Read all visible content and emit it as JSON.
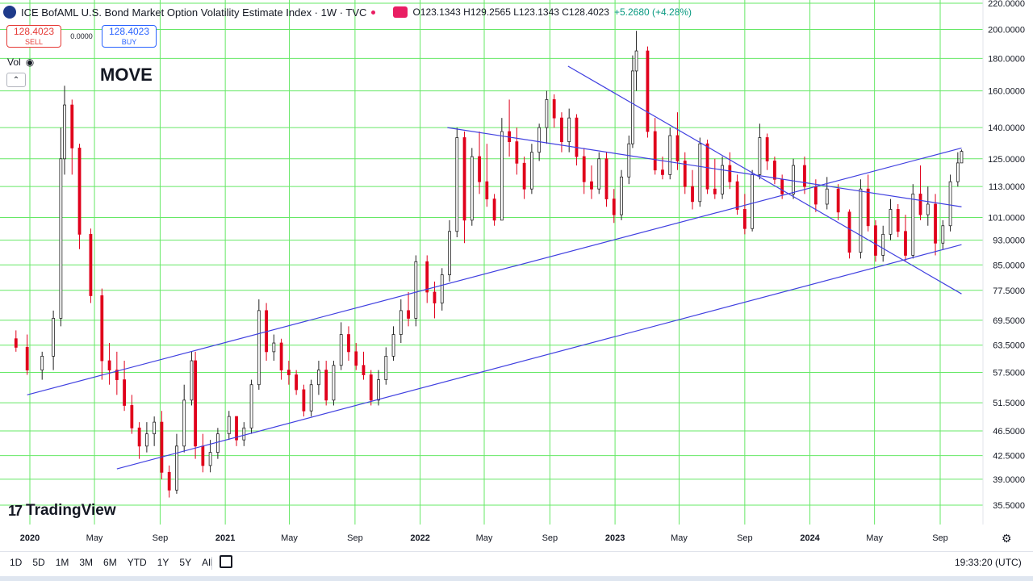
{
  "header": {
    "title": "ICE BofAML U.S. Bond Market Option Volatility Estimate Index · 1W · TVC",
    "ohlc": "O123.1343 H129.2565 L123.1343 C128.4023",
    "change": "+5.2680 (+4.28%)"
  },
  "trade": {
    "sell_price": "128.4023",
    "sell_label": "SELL",
    "spread": "0.0000",
    "buy_price": "128.4023",
    "buy_label": "BUY"
  },
  "volume_label": "Vol",
  "symbol_label": "MOVE",
  "brand": "TradingView",
  "time_ranges": [
    "1D",
    "5D",
    "1M",
    "3M",
    "6M",
    "YTD",
    "1Y",
    "5Y",
    "All"
  ],
  "clock": "19:33:20 (UTC)",
  "colors": {
    "up": "#787b86",
    "down": "#e0001b",
    "grid": "#66e866",
    "trendline": "#4040e0"
  },
  "chart_data": {
    "type": "candlestick",
    "scale": "log",
    "y_ticks": [
      "220.0000",
      "200.0000",
      "180.0000",
      "160.0000",
      "140.0000",
      "125.0000",
      "113.0000",
      "101.0000",
      "93.0000",
      "85.0000",
      "77.5000",
      "69.5000",
      "63.5000",
      "57.5000",
      "51.5000",
      "46.5000",
      "42.5000",
      "39.0000",
      "35.5000"
    ],
    "x_ticks": [
      "2020",
      "May",
      "Sep",
      "2021",
      "May",
      "Sep",
      "2022",
      "May",
      "Sep",
      "2023",
      "May",
      "Sep",
      "2024",
      "May",
      "Sep"
    ],
    "ylim": [
      33.5,
      225
    ],
    "grid": true,
    "ohlc_series": [
      [
        "2019-12-06",
        65,
        67,
        62,
        63
      ],
      [
        "2019-12-27",
        63,
        66,
        57,
        58
      ],
      [
        "2020-01-24",
        58,
        62,
        56,
        61
      ],
      [
        "2020-02-14",
        61,
        72,
        58,
        70
      ],
      [
        "2020-02-28",
        70,
        140,
        68,
        125
      ],
      [
        "2020-03-06",
        125,
        163,
        118,
        152
      ],
      [
        "2020-03-20",
        152,
        155,
        118,
        130
      ],
      [
        "2020-04-03",
        130,
        132,
        90,
        95
      ],
      [
        "2020-04-24",
        95,
        97,
        74,
        76
      ],
      [
        "2020-05-15",
        76,
        78,
        56,
        60
      ],
      [
        "2020-05-29",
        60,
        64,
        55,
        58
      ],
      [
        "2020-06-12",
        58,
        62,
        53,
        56
      ],
      [
        "2020-06-26",
        56,
        60,
        50,
        51
      ],
      [
        "2020-07-10",
        51,
        53,
        46,
        47
      ],
      [
        "2020-07-24",
        47,
        48,
        42,
        44
      ],
      [
        "2020-08-07",
        44,
        48,
        43,
        46
      ],
      [
        "2020-08-21",
        46,
        49,
        44,
        48
      ],
      [
        "2020-09-04",
        48,
        50,
        39,
        40
      ],
      [
        "2020-09-18",
        40,
        41,
        36.5,
        37.5
      ],
      [
        "2020-10-02",
        37.5,
        46,
        37,
        44
      ],
      [
        "2020-10-16",
        44,
        55,
        43,
        52
      ],
      [
        "2020-10-30",
        52,
        62,
        51,
        60
      ],
      [
        "2020-11-06",
        60,
        62,
        42,
        44
      ],
      [
        "2020-11-20",
        44,
        46,
        40,
        41
      ],
      [
        "2020-12-04",
        41,
        45,
        40,
        43
      ],
      [
        "2020-12-18",
        43,
        47,
        42,
        46
      ],
      [
        "2021-01-08",
        46,
        50,
        45,
        49
      ],
      [
        "2021-01-22",
        49,
        49,
        44,
        45
      ],
      [
        "2021-02-05",
        45,
        48,
        44,
        47
      ],
      [
        "2021-02-19",
        47,
        56,
        46,
        55
      ],
      [
        "2021-03-05",
        55,
        75,
        54,
        72
      ],
      [
        "2021-03-19",
        72,
        74,
        60,
        62
      ],
      [
        "2021-04-02",
        62,
        66,
        60,
        64
      ],
      [
        "2021-04-16",
        64,
        65,
        56,
        58
      ],
      [
        "2021-04-30",
        58,
        60,
        55,
        57
      ],
      [
        "2021-05-14",
        57,
        58,
        53,
        54
      ],
      [
        "2021-05-28",
        54,
        55,
        49,
        50
      ],
      [
        "2021-06-11",
        50,
        56,
        49,
        55
      ],
      [
        "2021-06-25",
        55,
        60,
        53,
        58
      ],
      [
        "2021-07-09",
        58,
        60,
        51,
        52
      ],
      [
        "2021-07-23",
        52,
        60,
        51,
        59
      ],
      [
        "2021-08-06",
        59,
        69,
        58,
        66
      ],
      [
        "2021-08-20",
        66,
        68,
        60,
        62
      ],
      [
        "2021-09-03",
        62,
        64,
        58,
        59
      ],
      [
        "2021-09-17",
        59,
        62,
        56,
        57
      ],
      [
        "2021-10-01",
        57,
        58,
        51,
        52
      ],
      [
        "2021-10-15",
        52,
        58,
        51,
        56
      ],
      [
        "2021-10-29",
        56,
        63,
        55,
        61
      ],
      [
        "2021-11-12",
        61,
        68,
        60,
        66
      ],
      [
        "2021-11-26",
        66,
        75,
        64,
        72
      ],
      [
        "2021-12-10",
        72,
        77,
        68,
        70
      ],
      [
        "2021-12-24",
        70,
        88,
        68,
        86
      ],
      [
        "2022-01-14",
        86,
        88,
        74,
        77
      ],
      [
        "2022-01-28",
        77,
        80,
        70,
        74
      ],
      [
        "2022-02-11",
        74,
        84,
        72,
        82
      ],
      [
        "2022-02-25",
        82,
        100,
        80,
        96
      ],
      [
        "2022-03-11",
        96,
        140,
        94,
        135
      ],
      [
        "2022-03-25",
        135,
        138,
        92,
        100
      ],
      [
        "2022-04-08",
        100,
        130,
        98,
        126
      ],
      [
        "2022-04-22",
        126,
        138,
        110,
        115
      ],
      [
        "2022-05-06",
        115,
        132,
        105,
        108
      ],
      [
        "2022-05-20",
        108,
        110,
        98,
        100
      ],
      [
        "2022-06-03",
        100,
        145,
        100,
        138
      ],
      [
        "2022-06-17",
        138,
        155,
        126,
        133
      ],
      [
        "2022-07-01",
        133,
        140,
        118,
        123
      ],
      [
        "2022-07-15",
        123,
        126,
        108,
        112
      ],
      [
        "2022-07-29",
        112,
        132,
        110,
        128
      ],
      [
        "2022-08-12",
        128,
        142,
        124,
        140
      ],
      [
        "2022-08-26",
        140,
        160,
        132,
        155
      ],
      [
        "2022-09-09",
        155,
        158,
        140,
        145
      ],
      [
        "2022-09-23",
        145,
        148,
        128,
        133
      ],
      [
        "2022-10-07",
        133,
        150,
        128,
        145
      ],
      [
        "2022-10-21",
        145,
        147,
        122,
        126
      ],
      [
        "2022-11-04",
        126,
        130,
        110,
        115
      ],
      [
        "2022-11-18",
        115,
        122,
        108,
        112
      ],
      [
        "2022-12-02",
        112,
        128,
        110,
        125
      ],
      [
        "2022-12-16",
        125,
        128,
        105,
        108
      ],
      [
        "2022-12-30",
        108,
        112,
        99,
        102
      ],
      [
        "2023-01-13",
        102,
        120,
        100,
        117
      ],
      [
        "2023-01-27",
        117,
        136,
        114,
        132
      ],
      [
        "2023-02-03",
        132,
        182,
        130,
        172
      ],
      [
        "2023-02-10",
        172,
        199,
        160,
        185
      ],
      [
        "2023-03-03",
        185,
        188,
        135,
        138
      ],
      [
        "2023-03-17",
        138,
        145,
        118,
        120
      ],
      [
        "2023-03-31",
        120,
        126,
        116,
        118
      ],
      [
        "2023-04-14",
        118,
        140,
        116,
        136
      ],
      [
        "2023-04-28",
        136,
        148,
        120,
        124
      ],
      [
        "2023-05-12",
        124,
        128,
        110,
        113
      ],
      [
        "2023-05-26",
        113,
        120,
        104,
        107
      ],
      [
        "2023-06-09",
        107,
        135,
        105,
        132
      ],
      [
        "2023-06-23",
        132,
        134,
        110,
        112
      ],
      [
        "2023-07-07",
        112,
        125,
        108,
        110
      ],
      [
        "2023-07-21",
        110,
        126,
        108,
        122
      ],
      [
        "2023-08-04",
        122,
        128,
        112,
        115
      ],
      [
        "2023-08-18",
        115,
        118,
        102,
        104
      ],
      [
        "2023-09-01",
        104,
        110,
        95,
        97
      ],
      [
        "2023-09-15",
        97,
        120,
        96,
        118
      ],
      [
        "2023-09-29",
        118,
        142,
        116,
        135
      ],
      [
        "2023-10-13",
        135,
        137,
        120,
        124
      ],
      [
        "2023-10-27",
        124,
        126,
        114,
        116
      ],
      [
        "2023-11-10",
        116,
        118,
        108,
        110
      ],
      [
        "2023-12-01",
        110,
        125,
        108,
        122
      ],
      [
        "2023-12-22",
        122,
        126,
        110,
        113
      ],
      [
        "2024-01-12",
        113,
        116,
        103,
        106
      ],
      [
        "2024-02-02",
        106,
        117,
        104,
        112
      ],
      [
        "2024-02-23",
        112,
        114,
        100,
        103
      ],
      [
        "2024-03-15",
        103,
        104,
        87,
        89
      ],
      [
        "2024-04-05",
        89,
        116,
        87,
        112
      ],
      [
        "2024-04-19",
        112,
        118,
        96,
        98
      ],
      [
        "2024-05-03",
        98,
        100,
        86,
        88
      ],
      [
        "2024-05-17",
        88,
        98,
        86,
        95
      ],
      [
        "2024-05-31",
        95,
        108,
        93,
        104
      ],
      [
        "2024-06-14",
        104,
        106,
        94,
        96
      ],
      [
        "2024-06-28",
        96,
        102,
        86,
        88
      ],
      [
        "2024-07-12",
        88,
        114,
        87,
        110
      ],
      [
        "2024-07-26",
        110,
        122,
        100,
        102
      ],
      [
        "2024-08-09",
        102,
        113,
        98,
        106
      ],
      [
        "2024-08-23",
        106,
        110,
        88,
        92
      ],
      [
        "2024-09-06",
        92,
        100,
        90,
        98
      ],
      [
        "2024-09-20",
        98,
        118,
        96,
        115
      ],
      [
        "2024-10-04",
        115,
        128,
        113,
        123.1343
      ],
      [
        "2024-10-11",
        123.1343,
        129.2565,
        123.1343,
        128.4023
      ]
    ],
    "trendlines": [
      {
        "from": [
          "2019-12-27",
          53
        ],
        "to": [
          "2024-10-11",
          130
        ]
      },
      {
        "from": [
          "2020-06-12",
          40.5
        ],
        "to": [
          "2024-10-11",
          91.5
        ]
      },
      {
        "from": [
          "2022-02-21",
          140
        ],
        "to": [
          "2024-10-11",
          105
        ]
      },
      {
        "from": [
          "2022-10-05",
          175
        ],
        "to": [
          "2024-10-11",
          76.5
        ]
      }
    ]
  }
}
